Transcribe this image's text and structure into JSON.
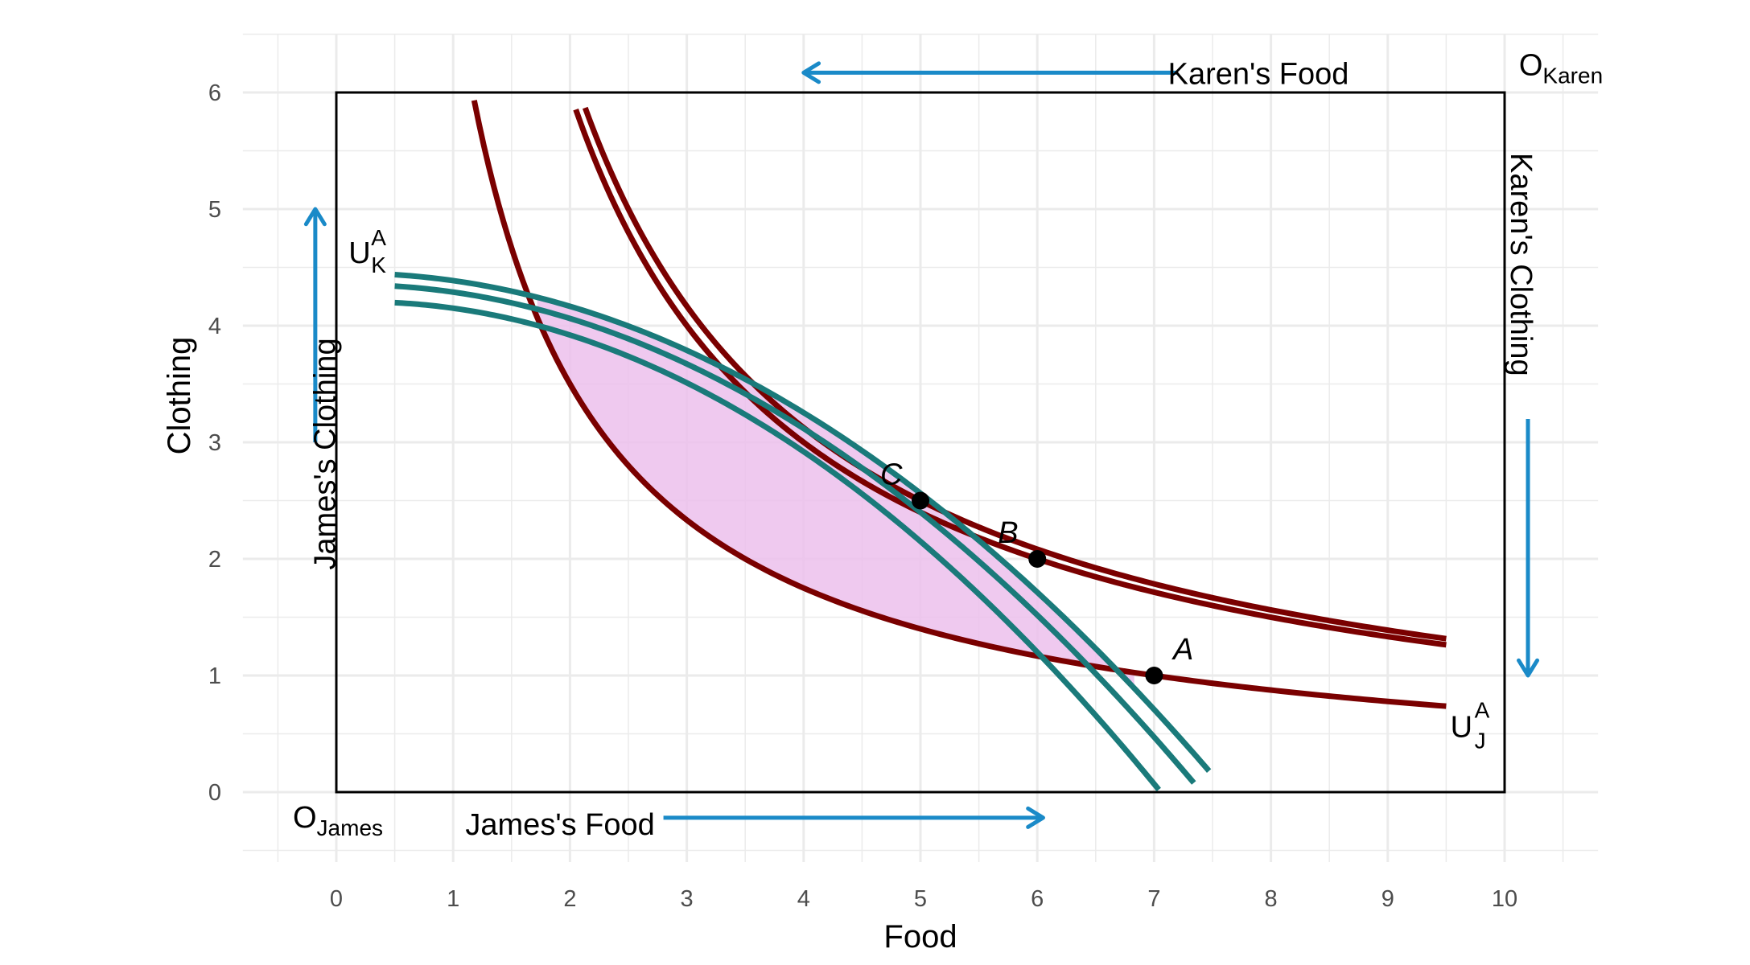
{
  "colors": {
    "james_curve": "#7a0000",
    "karen_curve": "#1a7a7a",
    "arrow": "#1a8ac8",
    "lens_fill": "#ecc0ec",
    "grid": "#ebebeb",
    "box": "#000000"
  },
  "chart_data": {
    "type": "line",
    "xlabel": "Food",
    "ylabel": "Clothing",
    "xlim": [
      -0.8,
      10.8
    ],
    "ylim": [
      -0.6,
      6.5
    ],
    "x_ticks": [
      0,
      1,
      2,
      3,
      4,
      5,
      6,
      7,
      8,
      9,
      10
    ],
    "y_ticks": [
      0,
      1,
      2,
      3,
      4,
      5,
      6
    ],
    "grid": true,
    "edgeworth_box": {
      "x": [
        0,
        10
      ],
      "y": [
        0,
        6
      ]
    },
    "annotations": {
      "origin_james": {
        "base": "O",
        "sub": "James",
        "x": 0.0,
        "y": -0.18
      },
      "origin_karen": {
        "base": "O",
        "sub": "Karen",
        "x": 10.0,
        "y": 6.23
      },
      "james_food": {
        "text": "James's Food",
        "x": 2.0,
        "y": -0.27
      },
      "karen_food": {
        "text": "Karen's Food",
        "x": 8.0,
        "y": 6.17
      },
      "james_clothing": {
        "text": "James's Clothing",
        "x": -0.05,
        "y": 2.9
      },
      "karen_clothing": {
        "text": "Karen's Clothing",
        "x": 10.15,
        "y": 5.0
      },
      "u_j": {
        "base": "U",
        "sup": "A",
        "sub": "J",
        "x": 9.55,
        "y": 0.72
      },
      "u_k": {
        "base": "U",
        "sup": "A",
        "sub": "K",
        "x": 0.05,
        "y": 4.8
      }
    },
    "arrows": [
      {
        "name": "james-food-arrow",
        "from": [
          2.8,
          -0.22
        ],
        "to": [
          6.05,
          -0.22
        ]
      },
      {
        "name": "karen-food-arrow",
        "from": [
          7.2,
          6.17
        ],
        "to": [
          4.0,
          6.17
        ]
      },
      {
        "name": "james-clothing-arrow",
        "from": [
          -0.18,
          3.0
        ],
        "to": [
          -0.18,
          5.0
        ]
      },
      {
        "name": "karen-clothing-arrow",
        "from": [
          10.2,
          3.2
        ],
        "to": [
          10.2,
          1.0
        ]
      }
    ],
    "points": [
      {
        "label": "A",
        "x": 7,
        "y": 1,
        "label_dx": 0.25,
        "label_dy": 0.22
      },
      {
        "label": "B",
        "x": 6,
        "y": 2,
        "label_dx": -0.25,
        "label_dy": 0.22
      },
      {
        "label": "C",
        "x": 5,
        "y": 2.5,
        "label_dx": -0.25,
        "label_dy": 0.22
      }
    ],
    "series": [
      {
        "group": "james",
        "type": "indifference",
        "k": 7,
        "x_range": [
          1.18,
          9.5
        ]
      },
      {
        "group": "james",
        "type": "indifference",
        "k": 12,
        "x_range": [
          2.05,
          9.5
        ]
      },
      {
        "group": "james",
        "type": "indifference",
        "k": 12.5,
        "x_range": [
          2.13,
          9.5
        ]
      },
      {
        "group": "karen",
        "type": "quadratic",
        "coef": [
          4.2,
          0.04,
          -0.09
        ],
        "x_range": [
          0.5,
          7.04
        ]
      },
      {
        "group": "karen",
        "type": "quadratic",
        "coef": [
          4.35,
          0.02,
          -0.082
        ],
        "x_range": [
          0.5,
          7.34
        ]
      },
      {
        "group": "karen",
        "type": "quadratic",
        "coef": [
          4.45,
          0.015,
          -0.0785
        ],
        "x_range": [
          0.5,
          7.47
        ]
      }
    ],
    "lens_region": {
      "lower_k": 7,
      "upper_coef": [
        4.45,
        0.015,
        -0.0785
      ],
      "x_range": [
        1.72,
        6.83
      ]
    }
  }
}
